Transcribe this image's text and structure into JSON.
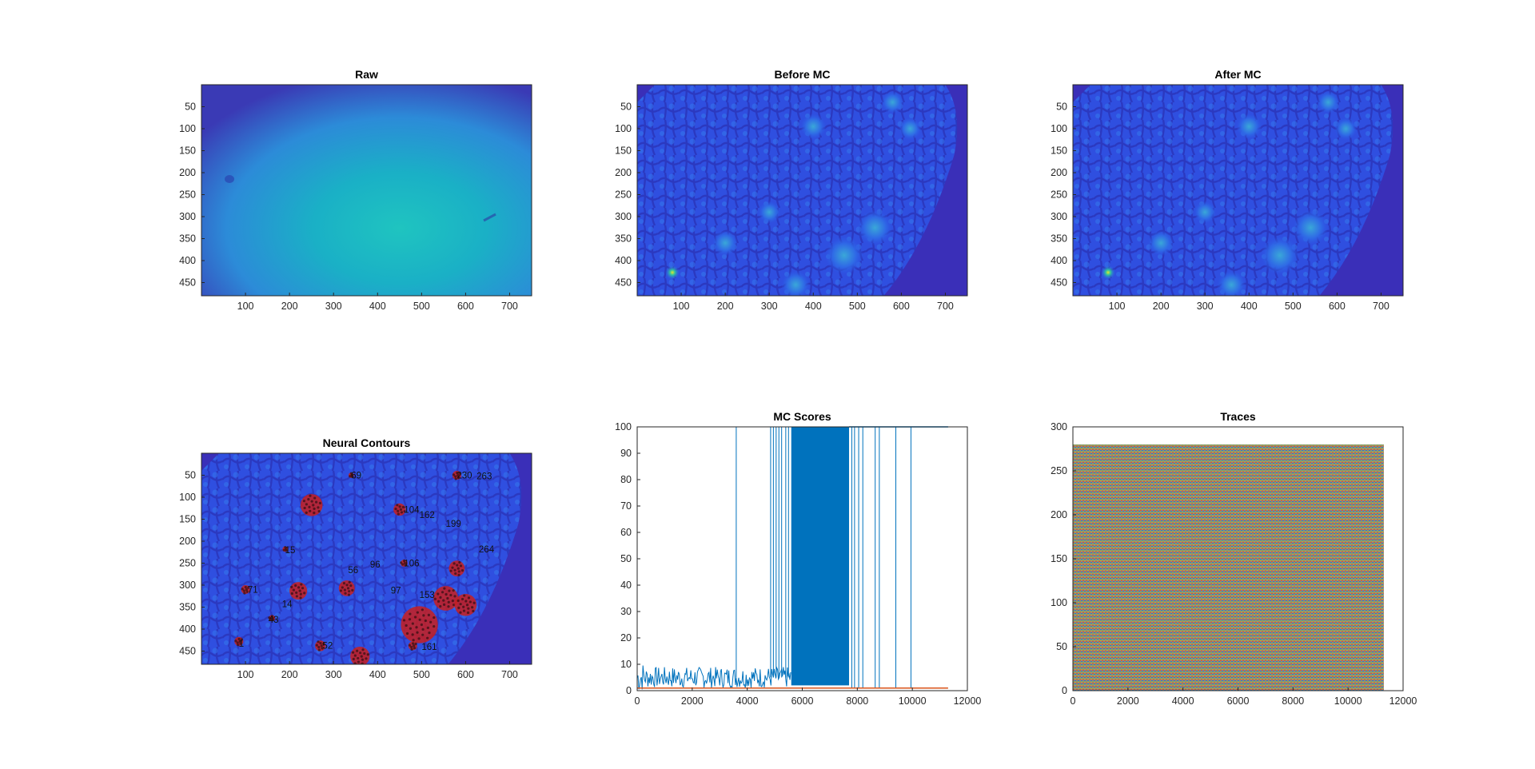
{
  "figure": {
    "panels": [
      {
        "key": "raw",
        "title": "Raw"
      },
      {
        "key": "before",
        "title": "Before MC"
      },
      {
        "key": "after",
        "title": "After MC"
      },
      {
        "key": "contours",
        "title": "Neural Contours"
      },
      {
        "key": "scores",
        "title": "MC Scores"
      },
      {
        "key": "traces",
        "title": "Traces"
      }
    ],
    "colors": {
      "background_image": "#3a2fb8",
      "bright_image": "#22c1c2",
      "score_line": "#0072bd",
      "score_line2": "#d95319",
      "roi_marker": "#d0201c"
    }
  },
  "chart_data": [
    {
      "type": "heatmap",
      "title": "Raw",
      "colormap": "parula",
      "xlim": [
        0,
        750
      ],
      "ylim": [
        480,
        0
      ],
      "xticks": [
        100,
        200,
        300,
        400,
        500,
        600,
        700
      ],
      "yticks": [
        50,
        100,
        150,
        200,
        250,
        300,
        350,
        400,
        450
      ]
    },
    {
      "type": "heatmap",
      "title": "Before MC",
      "colormap": "parula",
      "xlim": [
        0,
        750
      ],
      "ylim": [
        480,
        0
      ],
      "xticks": [
        100,
        200,
        300,
        400,
        500,
        600,
        700
      ],
      "yticks": [
        50,
        100,
        150,
        200,
        250,
        300,
        350,
        400,
        450
      ]
    },
    {
      "type": "heatmap",
      "title": "After MC",
      "colormap": "parula",
      "xlim": [
        0,
        750
      ],
      "ylim": [
        480,
        0
      ],
      "xticks": [
        100,
        200,
        300,
        400,
        500,
        600,
        700
      ],
      "yticks": [
        50,
        100,
        150,
        200,
        250,
        300,
        350,
        400,
        450
      ]
    },
    {
      "type": "heatmap",
      "title": "Neural Contours",
      "colormap": "parula",
      "xlim": [
        0,
        750
      ],
      "ylim": [
        480,
        0
      ],
      "xticks": [
        100,
        200,
        300,
        400,
        500,
        600,
        700
      ],
      "yticks": [
        50,
        100,
        150,
        200,
        250,
        300,
        350,
        400,
        450
      ],
      "roi_labels": [
        {
          "text": "69",
          "x": 340,
          "y": 50
        },
        {
          "text": "230",
          "x": 580,
          "y": 50
        },
        {
          "text": "263",
          "x": 625,
          "y": 52
        },
        {
          "text": "104",
          "x": 460,
          "y": 128
        },
        {
          "text": "162",
          "x": 495,
          "y": 140
        },
        {
          "text": "199",
          "x": 555,
          "y": 160
        },
        {
          "text": "264",
          "x": 630,
          "y": 218
        },
        {
          "text": "15",
          "x": 190,
          "y": 220
        },
        {
          "text": "56",
          "x": 333,
          "y": 265
        },
        {
          "text": "96",
          "x": 383,
          "y": 253
        },
        {
          "text": "106",
          "x": 460,
          "y": 250
        },
        {
          "text": "71",
          "x": 105,
          "y": 310
        },
        {
          "text": "97",
          "x": 430,
          "y": 312
        },
        {
          "text": "153",
          "x": 495,
          "y": 322
        },
        {
          "text": "14",
          "x": 183,
          "y": 343
        },
        {
          "text": "43",
          "x": 152,
          "y": 378
        },
        {
          "text": "52",
          "x": 275,
          "y": 437
        },
        {
          "text": "161",
          "x": 500,
          "y": 440
        },
        {
          "text": "1",
          "x": 85,
          "y": 433
        }
      ],
      "roi_clusters": [
        {
          "x": 250,
          "y": 118,
          "r": 25
        },
        {
          "x": 450,
          "y": 128,
          "r": 14
        },
        {
          "x": 580,
          "y": 50,
          "r": 10
        },
        {
          "x": 330,
          "y": 307,
          "r": 18
        },
        {
          "x": 220,
          "y": 313,
          "r": 20
        },
        {
          "x": 100,
          "y": 310,
          "r": 10
        },
        {
          "x": 555,
          "y": 330,
          "r": 28
        },
        {
          "x": 600,
          "y": 345,
          "r": 25
        },
        {
          "x": 495,
          "y": 390,
          "r": 42
        },
        {
          "x": 580,
          "y": 262,
          "r": 18
        },
        {
          "x": 360,
          "y": 462,
          "r": 22
        },
        {
          "x": 270,
          "y": 438,
          "r": 12
        },
        {
          "x": 85,
          "y": 428,
          "r": 10
        },
        {
          "x": 480,
          "y": 438,
          "r": 10
        },
        {
          "x": 160,
          "y": 375,
          "r": 7
        },
        {
          "x": 460,
          "y": 250,
          "r": 8
        },
        {
          "x": 190,
          "y": 218,
          "r": 6
        },
        {
          "x": 340,
          "y": 50,
          "r": 6
        }
      ]
    },
    {
      "type": "line",
      "title": "MC Scores",
      "xlim": [
        0,
        12000
      ],
      "ylim": [
        0,
        100
      ],
      "xticks": [
        0,
        2000,
        4000,
        6000,
        8000,
        10000,
        12000
      ],
      "yticks": [
        0,
        10,
        20,
        30,
        40,
        50,
        60,
        70,
        80,
        90,
        100
      ],
      "series": [
        {
          "segments": [
            {
              "x_start": 0,
              "x_end": 5600,
              "baseline": 5,
              "amplitude": 5
            },
            {
              "x_start": 5600,
              "x_end": 7700,
              "baseline": 5,
              "amplitude": 95
            },
            {
              "x_start": 8000,
              "x_end": 11300,
              "baseline": 100,
              "amplitude": 0
            }
          ],
          "spikes_to_100": [
            3600,
            4850,
            4950,
            5050,
            5150,
            5250,
            5400,
            5500,
            7800,
            7900,
            8050,
            8200,
            8650,
            8800,
            9400,
            9950
          ]
        },
        {
          "level": 1
        }
      ]
    },
    {
      "type": "line",
      "title": "Traces",
      "xlim": [
        0,
        12000
      ],
      "ylim": [
        0,
        300
      ],
      "xticks": [
        0,
        2000,
        4000,
        6000,
        8000,
        10000,
        12000
      ],
      "yticks": [
        0,
        50,
        100,
        150,
        200,
        250,
        300
      ],
      "n_traces": 280,
      "x_end": 11300
    }
  ]
}
